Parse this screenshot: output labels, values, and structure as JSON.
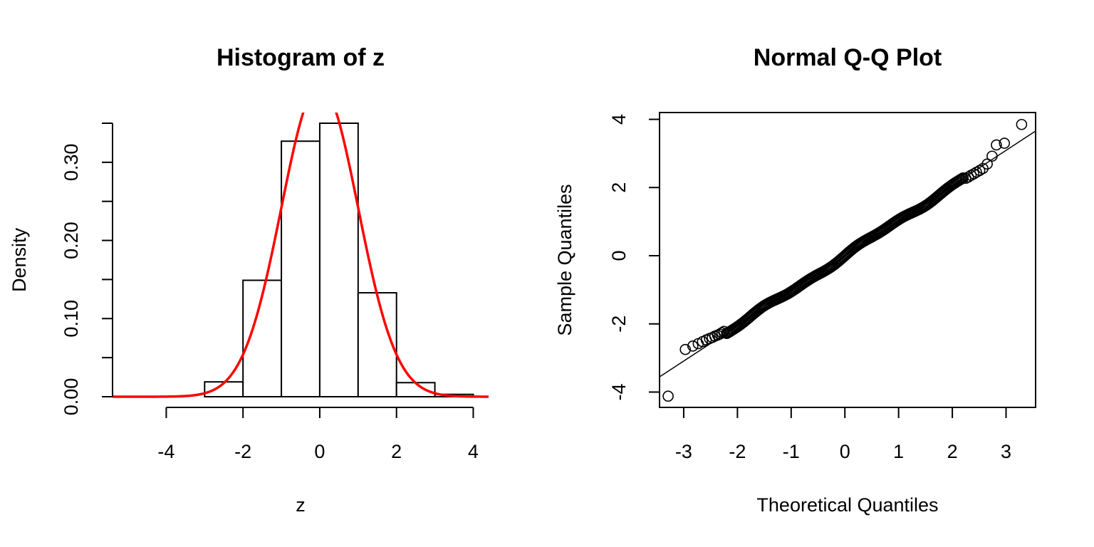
{
  "chart_data": [
    {
      "type": "bar",
      "title": "Histogram of z",
      "xlabel": "z",
      "ylabel": "Density",
      "xlim": [
        -5.4,
        4.4
      ],
      "ylim": [
        0,
        0.35
      ],
      "x_ticks": [
        "-4",
        "-2",
        "0",
        "2",
        "4"
      ],
      "x_tick_values": [
        -4,
        -2,
        0,
        2,
        4
      ],
      "y_ticks": [
        "0.00",
        "0.10",
        "0.20",
        "0.30"
      ],
      "y_tick_values": [
        0,
        0.1,
        0.2,
        0.3
      ],
      "y_minor_tick_values": [
        0.05,
        0.15,
        0.25,
        0.35
      ],
      "bins": [
        {
          "from": -3,
          "to": -2,
          "density": 0.019
        },
        {
          "from": -2,
          "to": -1,
          "density": 0.149
        },
        {
          "from": -1,
          "to": 0,
          "density": 0.327
        },
        {
          "from": 0,
          "to": 1,
          "density": 0.35
        },
        {
          "from": 1,
          "to": 2,
          "density": 0.133
        },
        {
          "from": 2,
          "to": 3,
          "density": 0.018
        },
        {
          "from": 3,
          "to": 4,
          "density": 0.003
        }
      ],
      "curve": {
        "kind": "normal-density",
        "mean": 0,
        "sd": 1,
        "color": "#ff0000"
      },
      "bar_color": "#ffffff",
      "edge_color": "#000000"
    },
    {
      "type": "scatter",
      "title": "Normal Q-Q Plot",
      "xlabel": "Theoretical Quantiles",
      "ylabel": "Sample Quantiles",
      "xlim": [
        -3.45,
        3.55
      ],
      "ylim": [
        -4.45,
        4.2
      ],
      "x_ticks": [
        "-3",
        "-2",
        "-1",
        "0",
        "1",
        "2",
        "3"
      ],
      "x_tick_values": [
        -3,
        -2,
        -1,
        0,
        1,
        2,
        3
      ],
      "y_ticks": [
        "-4",
        "-2",
        "0",
        "2",
        "4"
      ],
      "y_tick_values": [
        -4,
        -2,
        0,
        2,
        4
      ],
      "points": {
        "low_tail": [
          [
            -3.29,
            -4.12
          ],
          [
            -2.97,
            -2.75
          ],
          [
            -2.83,
            -2.65
          ],
          [
            -2.73,
            -2.58
          ],
          [
            -2.65,
            -2.52
          ],
          [
            -2.58,
            -2.47
          ],
          [
            -2.52,
            -2.43
          ],
          [
            -2.47,
            -2.4
          ],
          [
            -2.42,
            -2.36
          ],
          [
            -2.37,
            -2.33
          ],
          [
            -2.33,
            -2.3
          ],
          [
            -2.29,
            -2.26
          ],
          [
            -2.25,
            -2.22
          ]
        ],
        "body_range": [
          -2.2,
          2.2
        ],
        "high_tail": [
          [
            2.25,
            2.27
          ],
          [
            2.3,
            2.31
          ],
          [
            2.35,
            2.36
          ],
          [
            2.4,
            2.4
          ],
          [
            2.45,
            2.45
          ],
          [
            2.51,
            2.5
          ],
          [
            2.57,
            2.56
          ],
          [
            2.65,
            2.69
          ],
          [
            2.74,
            2.92
          ],
          [
            2.82,
            3.25
          ],
          [
            2.97,
            3.3
          ],
          [
            3.29,
            3.85
          ]
        ]
      },
      "reference_line": {
        "intercept": 0.0,
        "slope": 1.03
      },
      "point_color": "#000000"
    }
  ]
}
